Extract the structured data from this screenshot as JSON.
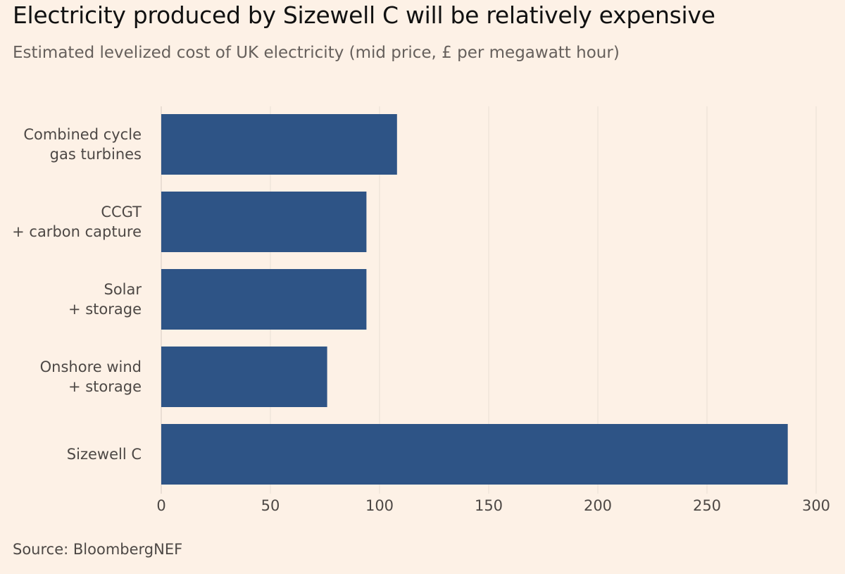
{
  "chart_data": {
    "type": "bar",
    "orientation": "horizontal",
    "title": "Electricity produced by Sizewell C will be relatively expensive",
    "subtitle": "Estimated levelized cost of UK electricity (mid price, £ per megawatt hour)",
    "categories": [
      [
        "Combined cycle",
        "gas turbines"
      ],
      [
        "CCGT",
        "+ carbon capture"
      ],
      [
        "Solar",
        "+ storage"
      ],
      [
        "Onshore wind",
        "+ storage"
      ],
      [
        "Sizewell C"
      ]
    ],
    "values": [
      108,
      94,
      94,
      76,
      287
    ],
    "xlim": [
      0,
      300
    ],
    "xticks": [
      0,
      50,
      100,
      150,
      200,
      250,
      300
    ],
    "xlabel": "",
    "ylabel": "",
    "grid": true,
    "source": "Source: BloombergNEF",
    "colors": {
      "bar": "#2e5486",
      "grid": "#e9dfd4",
      "background": "#fdf1e6"
    }
  }
}
